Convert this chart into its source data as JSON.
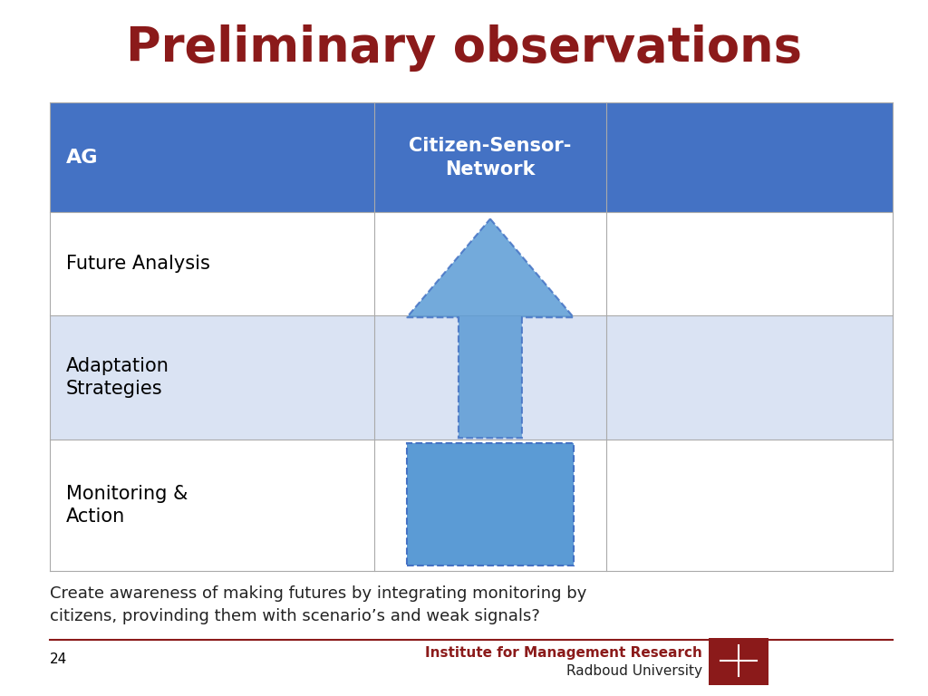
{
  "title": "Preliminary observations",
  "title_color": "#8B1A1A",
  "title_fontsize": 38,
  "table_rows": [
    "AG",
    "Future Analysis",
    "Adaptation\nStrategies",
    "Monitoring &\nAction"
  ],
  "col2_header": "Citizen-Sensor-\nNetwork",
  "header_bg": "#4472C4",
  "header_text_color": "#FFFFFF",
  "row1_bg": "#FFFFFF",
  "row2_bg": "#DAE3F3",
  "row3_bg": "#FFFFFF",
  "grid_color": "#AAAAAA",
  "arrow_fill": "#5B9BD5",
  "arrow_edge": "#4472C4",
  "caption": "Create awareness of making futures by integrating monitoring by\ncitizens, provinding them with scenario’s and weak signals?",
  "caption_fontsize": 13,
  "caption_color": "#222222",
  "footer_line_color": "#8B1A1A",
  "page_number": "24",
  "institute_text": "Institute for Management Research",
  "university_text": "Radboud University",
  "institute_color": "#8B1A1A",
  "university_color": "#222222",
  "footer_fontsize": 11,
  "fig_width": 10.24,
  "fig_height": 7.68,
  "bg_color": "#FFFFFF"
}
